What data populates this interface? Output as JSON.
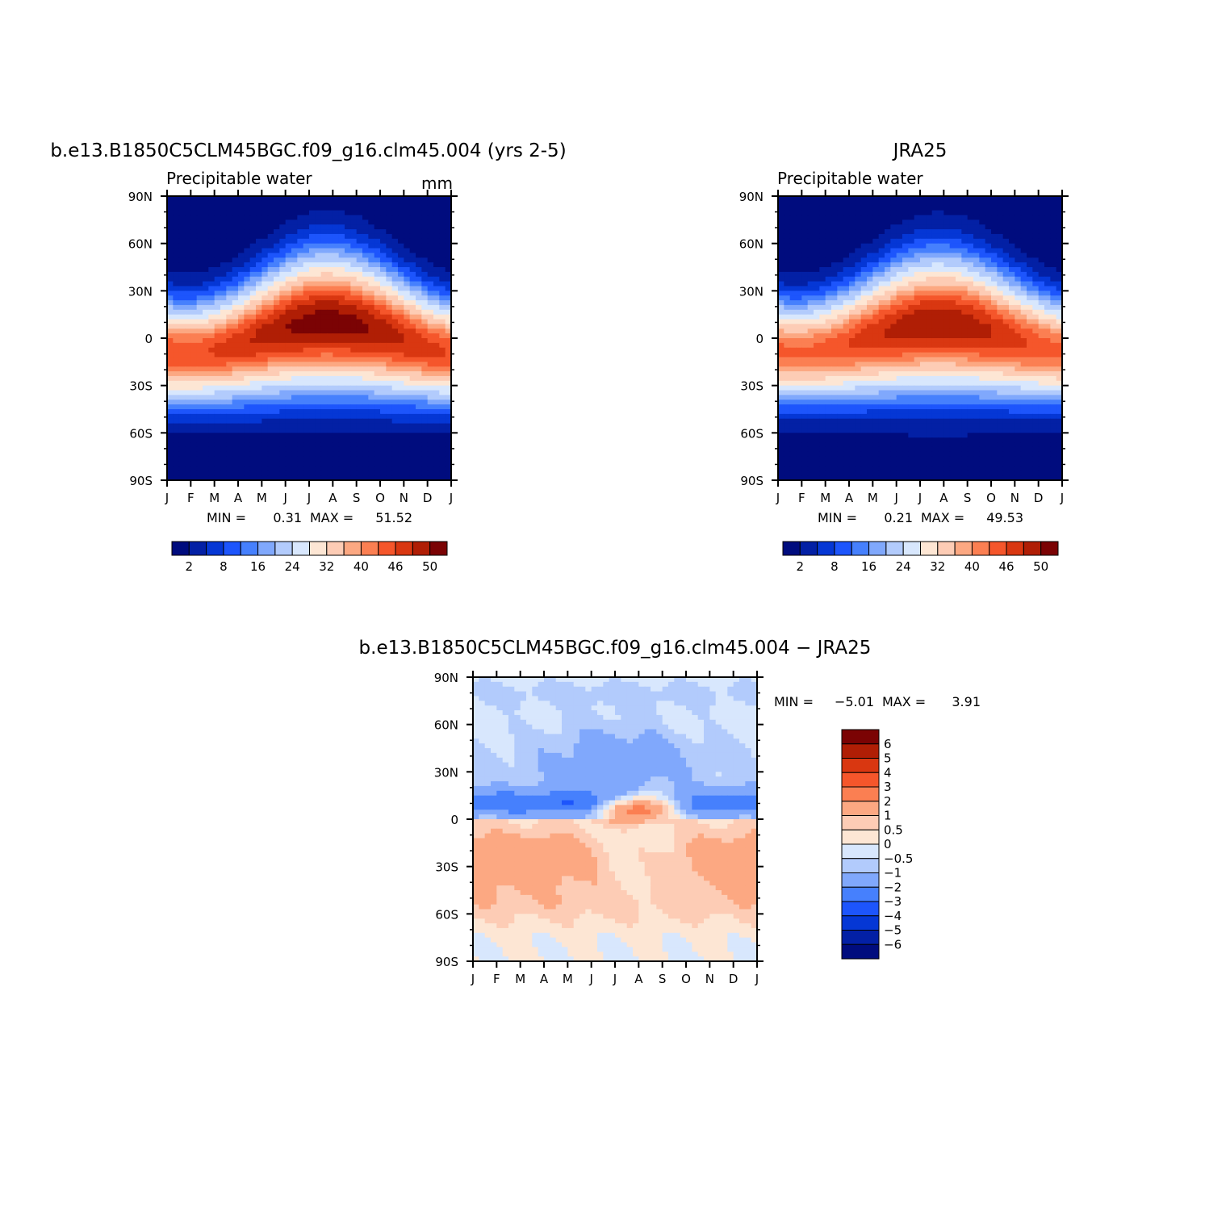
{
  "chart_data": [
    {
      "type": "heatmap",
      "title": "b.e13.B1850C5CLM45BGC.f09_g16.clm45.004 (yrs 2-5)",
      "subtitle": "Precipitable water",
      "units": "mm",
      "x_ticks": [
        "J",
        "F",
        "M",
        "A",
        "M",
        "J",
        "J",
        "A",
        "S",
        "O",
        "N",
        "D",
        "J"
      ],
      "y_ticks": [
        "90N",
        "60N",
        "30N",
        "0",
        "30S",
        "60S",
        "90S"
      ],
      "xlim": [
        0,
        12
      ],
      "ylim": [
        -90,
        90
      ],
      "stats": {
        "min_label": "MIN =",
        "min_value": "0.31",
        "max_label": "MAX =",
        "max_value": "51.52"
      },
      "colorbar_labels": [
        "2",
        "8",
        "16",
        "24",
        "32",
        "40",
        "46",
        "50"
      ],
      "colorbar_levels": 16,
      "field": {
        "kind": "absolute",
        "itcz_amplitude_deg": 10,
        "itcz_peak_mm": 51.5
      }
    },
    {
      "type": "heatmap",
      "title": "JRA25",
      "subtitle": "Precipitable water",
      "x_ticks": [
        "J",
        "F",
        "M",
        "A",
        "M",
        "J",
        "J",
        "A",
        "S",
        "O",
        "N",
        "D",
        "J"
      ],
      "y_ticks": [
        "90N",
        "60N",
        "30N",
        "0",
        "30S",
        "60S",
        "90S"
      ],
      "xlim": [
        0,
        12
      ],
      "ylim": [
        -90,
        90
      ],
      "stats": {
        "min_label": "MIN =",
        "min_value": "0.21",
        "max_label": "MAX =",
        "max_value": "49.53"
      },
      "colorbar_labels": [
        "2",
        "8",
        "16",
        "24",
        "32",
        "40",
        "46",
        "50"
      ],
      "colorbar_levels": 16,
      "field": {
        "kind": "absolute",
        "itcz_amplitude_deg": 9,
        "itcz_peak_mm": 49.5
      }
    },
    {
      "type": "heatmap",
      "title": "b.e13.B1850C5CLM45BGC.f09_g16.clm45.004 − JRA25",
      "x_ticks": [
        "J",
        "F",
        "M",
        "A",
        "M",
        "J",
        "J",
        "A",
        "S",
        "O",
        "N",
        "D",
        "J"
      ],
      "y_ticks": [
        "90N",
        "60N",
        "30N",
        "0",
        "30S",
        "60S",
        "90S"
      ],
      "xlim": [
        0,
        12
      ],
      "ylim": [
        -90,
        90
      ],
      "stats": {
        "min_label": "MIN =",
        "min_value": "−5.01",
        "max_label": "MAX =",
        "max_value": "3.91"
      },
      "colorbar_labels": [
        "6",
        "5",
        "4",
        "3",
        "2",
        "1",
        "0.5",
        "0",
        "−0.5",
        "−1",
        "−2",
        "−3",
        "−4",
        "−5",
        "−6"
      ],
      "colorbar_levels": 16,
      "field": {
        "kind": "difference",
        "min": -5.01,
        "max": 3.91
      }
    }
  ],
  "colors": {
    "scale": [
      "#000c7e",
      "#0320a5",
      "#0537d5",
      "#1d55fc",
      "#4680fd",
      "#80a8fc",
      "#b2cbfc",
      "#d8e7fd",
      "#fde6d4",
      "#fdccb5",
      "#fca882",
      "#fb7f52",
      "#f5562b",
      "#d93711",
      "#b01e05",
      "#7b0304"
    ]
  }
}
